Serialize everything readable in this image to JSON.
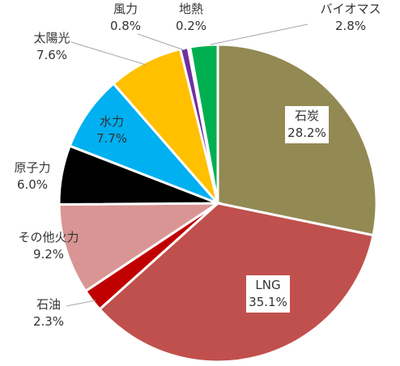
{
  "chart_data": {
    "type": "pie",
    "start_angle_deg": 0,
    "direction": "clockwise",
    "slices": [
      {
        "name": "石炭",
        "value": 28.2,
        "label": "28.2%",
        "color": "#938953"
      },
      {
        "name": "LNG",
        "value": 35.1,
        "label": "35.1%",
        "color": "#C0504D"
      },
      {
        "name": "石油",
        "value": 2.3,
        "label": "2.3%",
        "color": "#C00000"
      },
      {
        "name": "その他火力",
        "value": 9.2,
        "label": "9.2%",
        "color": "#D99594"
      },
      {
        "name": "原子力",
        "value": 6.0,
        "label": "6.0%",
        "color": "#000000"
      },
      {
        "name": "水力",
        "value": 7.7,
        "label": "7.7%",
        "color": "#00B0F0"
      },
      {
        "name": "太陽光",
        "value": 7.6,
        "label": "7.6%",
        "color": "#FFC000"
      },
      {
        "name": "風力",
        "value": 0.8,
        "label": "0.8%",
        "color": "#7030A0"
      },
      {
        "name": "地熱",
        "value": 0.2,
        "label": "0.2%",
        "color": "#00B050"
      },
      {
        "name": "バイオマス",
        "value": 2.8,
        "label": "2.8%",
        "color": "#00B050"
      }
    ]
  }
}
